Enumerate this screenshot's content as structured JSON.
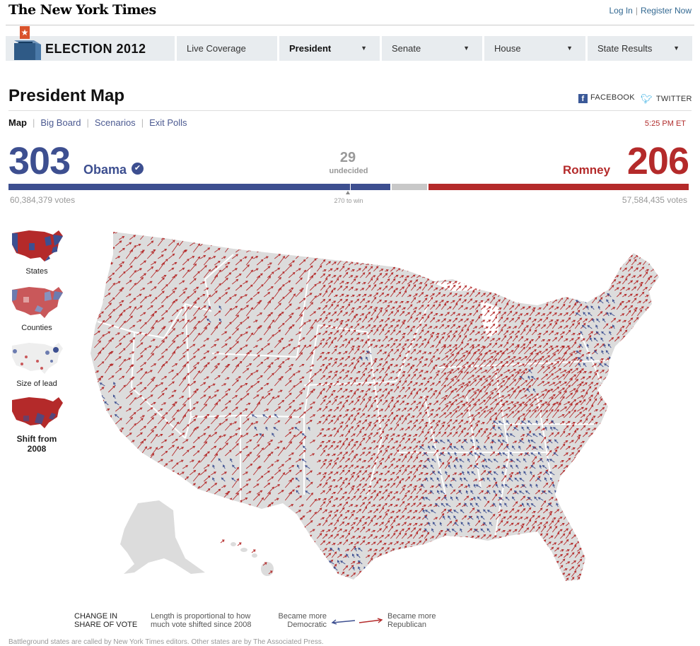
{
  "masthead": {
    "logo": "The New York Times",
    "login": "Log In",
    "register": "Register Now"
  },
  "nav": {
    "brand": "ELECTION 2012",
    "items": [
      {
        "label": "Live Coverage",
        "caret": false,
        "active": false
      },
      {
        "label": "President",
        "caret": true,
        "active": true
      },
      {
        "label": "Senate",
        "caret": true,
        "active": false
      },
      {
        "label": "House",
        "caret": true,
        "active": false
      },
      {
        "label": "State Results",
        "caret": true,
        "active": false
      }
    ]
  },
  "page": {
    "title": "President Map",
    "facebook": "FACEBOOK",
    "twitter": "TWITTER",
    "time": "5:25 PM ET"
  },
  "subnav": {
    "items": [
      "Map",
      "Big Board",
      "Scenarios",
      "Exit Polls"
    ],
    "current": 0
  },
  "tally": {
    "obama": {
      "electoral": "303",
      "name": "Obama",
      "votes": "60,384,379 votes"
    },
    "romney": {
      "electoral": "206",
      "name": "Romney",
      "votes": "57,584,435 votes"
    },
    "undecided": {
      "count": "29",
      "label": "undecided"
    },
    "to_win": "270 to win",
    "bar": {
      "total": 538,
      "dem": 303,
      "undecided": 29,
      "rep": 206,
      "threshold": 270
    }
  },
  "views": [
    {
      "label": "States",
      "selected": false
    },
    {
      "label": "Counties",
      "selected": false
    },
    {
      "label": "Size of lead",
      "selected": false
    },
    {
      "label": "Shift from 2008",
      "selected": true
    }
  ],
  "legend": {
    "heading": "CHANGE IN\nSHARE OF VOTE",
    "note": "Length is proportional to how\nmuch vote shifted since 2008",
    "dem": "Became more\nDemocratic",
    "rep": "Became more\nRepublican"
  },
  "footer": "Battleground states are called by New York Times editors. Other states are by The Associated Press.",
  "colors": {
    "dem": "#3d4f90",
    "rep": "#b42a2a",
    "undecided": "#c8c8c8",
    "land": "#dcdcdc",
    "nav": "#e8ecef"
  }
}
